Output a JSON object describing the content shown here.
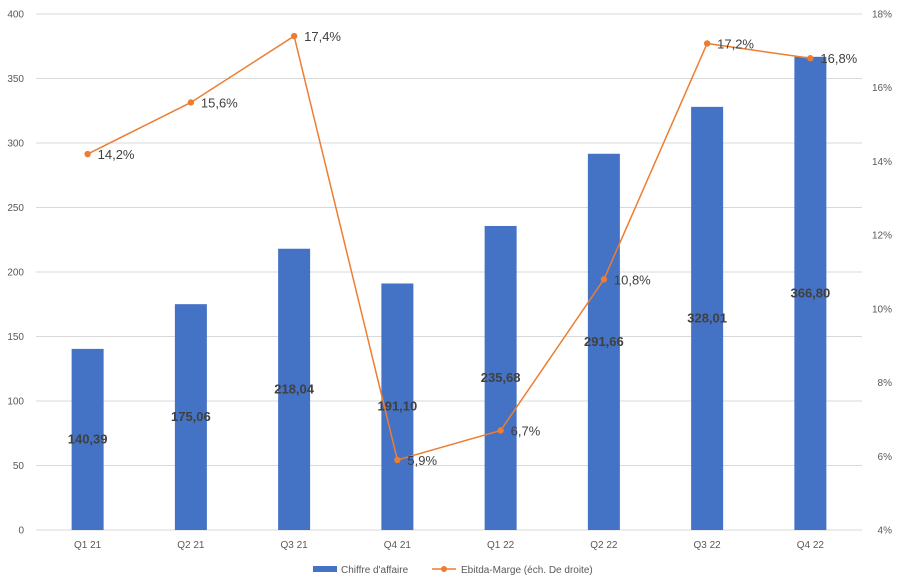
{
  "chart_data": {
    "type": "bar",
    "categories": [
      "Q1 21",
      "Q2 21",
      "Q3 21",
      "Q4 21",
      "Q1 22",
      "Q2 22",
      "Q3 22",
      "Q4 22"
    ],
    "series": [
      {
        "name": "Chiffre d'affaire",
        "type": "bar",
        "axis": "left",
        "color": "#4472C4",
        "values": [
          140.39,
          175.06,
          218.04,
          191.1,
          235.68,
          291.66,
          328.01,
          366.8
        ],
        "labels": [
          "140,39",
          "175,06",
          "218,04",
          "191,10",
          "235,68",
          "291,66",
          "328,01",
          "366,80"
        ]
      },
      {
        "name": "Ebitda-Marge (éch. De droite)",
        "type": "line",
        "axis": "right",
        "color": "#ED7D31",
        "values": [
          14.2,
          15.6,
          17.4,
          5.9,
          6.7,
          10.8,
          17.2,
          16.8
        ],
        "labels": [
          "14,2%",
          "15,6%",
          "17,4%",
          "5,9%",
          "6,7%",
          "10,8%",
          "17,2%",
          "16,8%"
        ]
      }
    ],
    "y_left": {
      "min": 0,
      "max": 400,
      "ticks": [
        "0",
        "50",
        "100",
        "150",
        "200",
        "250",
        "300",
        "350",
        "400"
      ]
    },
    "y_right": {
      "min": 4,
      "max": 18,
      "ticks": [
        "4%",
        "6%",
        "8%",
        "10%",
        "12%",
        "14%",
        "16%",
        "18%"
      ]
    },
    "grid": true,
    "legend_position": "bottom"
  }
}
